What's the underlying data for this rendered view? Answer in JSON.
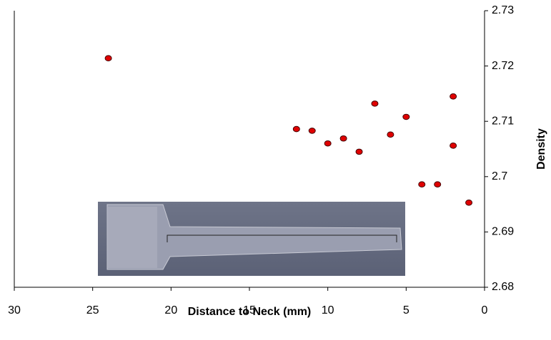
{
  "chart_data": {
    "type": "scatter",
    "x_label": "Distance to Neck (mm)",
    "y_label": "Density",
    "x": [
      24,
      12,
      11,
      10,
      9,
      8,
      7,
      6,
      5,
      4,
      3,
      2,
      2,
      1
    ],
    "values": [
      2.7214,
      2.7086,
      2.7083,
      2.706,
      2.7069,
      2.7045,
      2.7132,
      2.7076,
      2.7108,
      2.6986,
      2.6986,
      2.7145,
      2.7056,
      2.6953
    ],
    "color": "#e00000",
    "xlim": [
      30,
      0
    ],
    "xticks": [
      30,
      25,
      20,
      15,
      10,
      5,
      0
    ],
    "ylim": [
      2.68,
      2.73
    ],
    "yticks": [
      2.68,
      2.69,
      2.7,
      2.71,
      2.72,
      2.73
    ],
    "y_axis_side": "right",
    "grid": false
  }
}
